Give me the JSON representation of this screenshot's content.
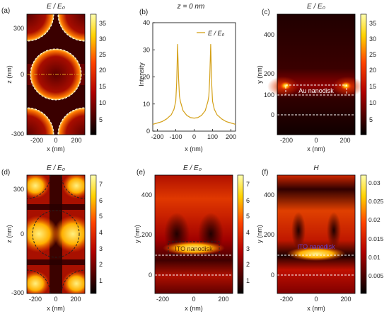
{
  "figure": {
    "panels": [
      {
        "id": "a",
        "label": "(a)",
        "title": "E / E₀",
        "colormap": "hot",
        "xlabel": "x (nm)",
        "ylabel": "z (nm)",
        "xticks": [
          "-200",
          "0",
          "200"
        ],
        "yticks": [
          "300",
          "0",
          "-300"
        ],
        "cbar_ticks": [
          "35",
          "30",
          "25",
          "20",
          "15",
          "10",
          "5"
        ],
        "overlay": "white-arcs"
      },
      {
        "id": "b",
        "label": "(b)",
        "title": "z = 0 nm",
        "xlabel": "x (nm)",
        "ylabel": "Intensity",
        "xticks": [
          "-200",
          "-100",
          "0",
          "100",
          "200"
        ],
        "yticks": [
          "0",
          "10",
          "20",
          "30",
          "40"
        ],
        "legend": "E / E₀"
      },
      {
        "id": "c",
        "label": "(c)",
        "title": "E / E₀",
        "colormap": "hot",
        "xlabel": "x (nm)",
        "ylabel": "y (nm)",
        "xticks": [
          "-200",
          "0",
          "200"
        ],
        "yticks": [
          "400",
          "200",
          "100",
          "0"
        ],
        "cbar_ticks": [
          "35",
          "30",
          "25",
          "20",
          "15",
          "10",
          "5"
        ],
        "annotation": "Au nanodisk"
      },
      {
        "id": "d",
        "label": "(d)",
        "title": "E / E₀",
        "colormap": "hot",
        "xlabel": "x (nm)",
        "ylabel": "z (nm)",
        "xticks": [
          "-200",
          "0",
          "200"
        ],
        "yticks": [
          "300",
          "0",
          "-300"
        ],
        "cbar_ticks": [
          "7",
          "6",
          "5",
          "4",
          "3",
          "2",
          "1"
        ],
        "overlay": "dark-arcs"
      },
      {
        "id": "e",
        "label": "(e)",
        "title": "E / E₀",
        "colormap": "hot",
        "xlabel": "x (nm)",
        "ylabel": "y (nm)",
        "xticks": [
          "-200",
          "0",
          "200"
        ],
        "yticks": [
          "400",
          "200",
          "0"
        ],
        "cbar_ticks": [
          "7",
          "6",
          "5",
          "4",
          "3",
          "2",
          "1"
        ],
        "annotation": "ITO nanodisk"
      },
      {
        "id": "f",
        "label": "(f)",
        "title": "H",
        "colormap": "hot",
        "xlabel": "x (nm)",
        "ylabel": "y (nm)",
        "xticks": [
          "-200",
          "0",
          "200"
        ],
        "yticks": [
          "400",
          "200",
          "0"
        ],
        "cbar_ticks": [
          "0.03",
          "0.025",
          "0.02",
          "0.015",
          "0.01",
          "0.005"
        ],
        "annotation": "ITO nanodisk"
      }
    ]
  },
  "chart_data": [
    {
      "type": "heatmap",
      "panel": "a",
      "title": "E / E₀",
      "xlabel": "x (nm)",
      "ylabel": "z (nm)",
      "xlim": [
        -250,
        250
      ],
      "ylim": [
        -300,
        350
      ],
      "colorbar_range": [
        1,
        37
      ],
      "grid": false
    },
    {
      "type": "line",
      "panel": "b",
      "title": "z = 0 nm",
      "xlabel": "x (nm)",
      "ylabel": "Intensity",
      "xlim": [
        -225,
        225
      ],
      "ylim": [
        0,
        40
      ],
      "series": [
        {
          "name": "E / E₀",
          "color": "#d4a017",
          "x": [
            -225,
            -200,
            -175,
            -150,
            -125,
            -110,
            -100,
            -95,
            -90,
            -85,
            -80,
            -75,
            -60,
            -40,
            -20,
            0,
            20,
            40,
            60,
            75,
            80,
            85,
            90,
            95,
            100,
            110,
            125,
            150,
            175,
            200,
            225
          ],
          "y": [
            2.5,
            3,
            3.5,
            4.5,
            6,
            8,
            11,
            18,
            32,
            20,
            13,
            11,
            7.5,
            5.8,
            5,
            4.8,
            5,
            5.8,
            7.5,
            11,
            13,
            20,
            32,
            18,
            11,
            8,
            6,
            4.5,
            3.5,
            3,
            2.5
          ]
        }
      ]
    },
    {
      "type": "heatmap",
      "panel": "c",
      "title": "E / E₀",
      "xlabel": "x (nm)",
      "ylabel": "y (nm)",
      "xlim": [
        -250,
        250
      ],
      "ylim": [
        -100,
        500
      ],
      "colorbar_range": [
        1,
        37
      ],
      "grid": false
    },
    {
      "type": "heatmap",
      "panel": "d",
      "title": "E / E₀",
      "xlabel": "x (nm)",
      "ylabel": "z (nm)",
      "xlim": [
        -250,
        250
      ],
      "ylim": [
        -300,
        350
      ],
      "colorbar_range": [
        0.5,
        7.5
      ],
      "grid": false
    },
    {
      "type": "heatmap",
      "panel": "e",
      "title": "E / E₀",
      "xlabel": "x (nm)",
      "ylabel": "y (nm)",
      "xlim": [
        -250,
        250
      ],
      "ylim": [
        -100,
        500
      ],
      "colorbar_range": [
        0.5,
        7.5
      ],
      "grid": false
    },
    {
      "type": "heatmap",
      "panel": "f",
      "title": "H",
      "xlabel": "x (nm)",
      "ylabel": "y (nm)",
      "xlim": [
        -250,
        250
      ],
      "ylim": [
        -100,
        500
      ],
      "colorbar_range": [
        0,
        0.033
      ],
      "grid": false
    }
  ]
}
